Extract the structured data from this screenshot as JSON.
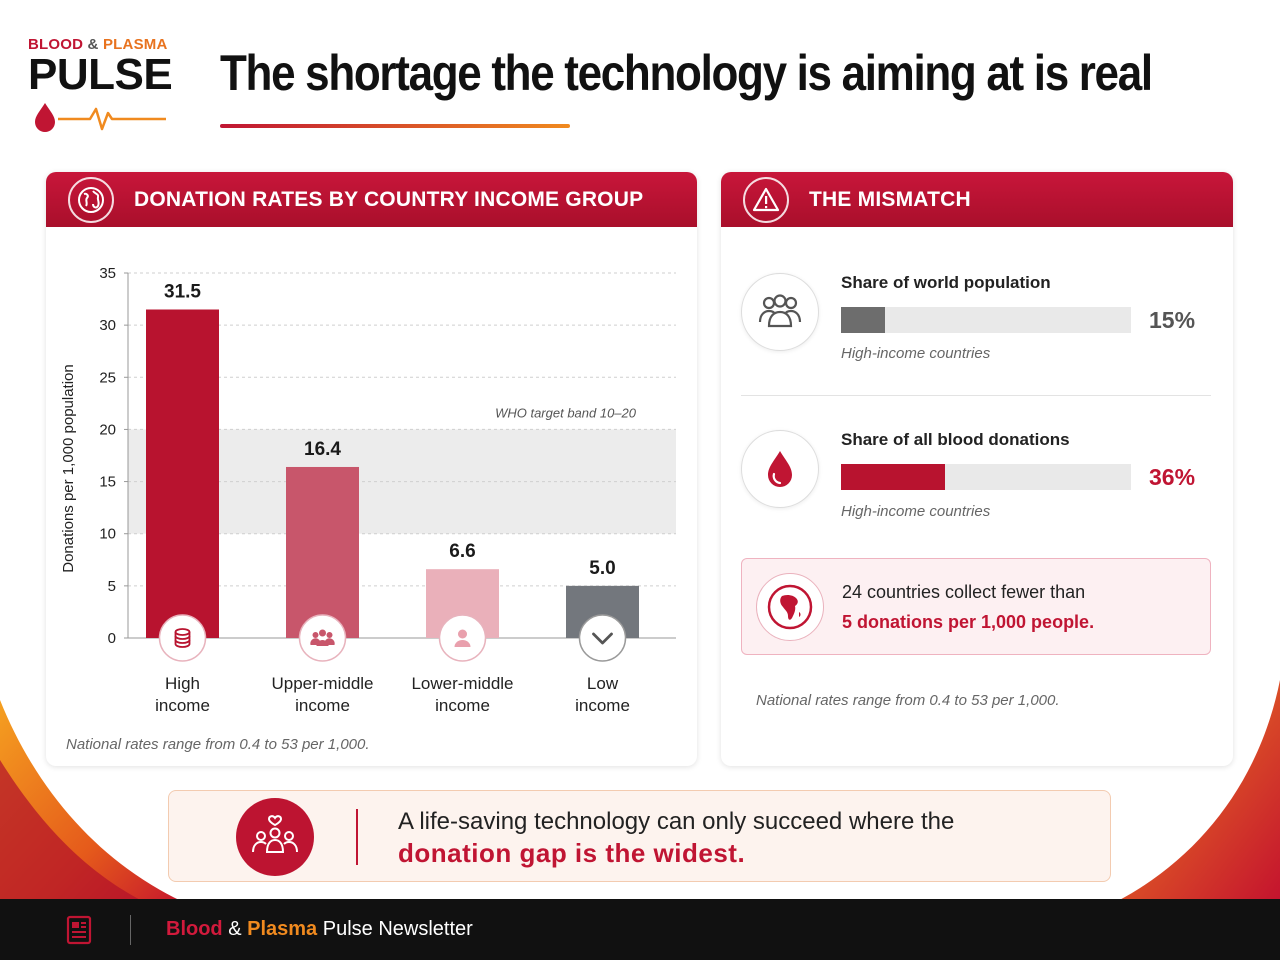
{
  "logo": {
    "line1_blood": "BLOOD",
    "line1_amp": "&",
    "line1_plasma": "PLASMA",
    "line2": "PULSE"
  },
  "title": "The shortage the technology is aiming at is real",
  "left_panel": {
    "header": "DONATION RATES BY COUNTRY INCOME GROUP",
    "note": "National rates range from 0.4 to 53 per 1,000."
  },
  "chart_data": {
    "type": "bar",
    "title": "DONATION RATES BY COUNTRY INCOME GROUP",
    "ylabel": "Donations per 1,000 population",
    "xlabel": "",
    "ylim": [
      0,
      35
    ],
    "yticks": [
      0,
      5,
      10,
      15,
      20,
      25,
      30,
      35
    ],
    "grid": true,
    "categories": [
      "High income",
      "Upper-middle income",
      "Lower-middle income",
      "Low income"
    ],
    "category_lines": [
      [
        "High",
        "income"
      ],
      [
        "Upper-middle",
        "income"
      ],
      [
        "Lower-middle",
        "income"
      ],
      [
        "Low",
        "income"
      ]
    ],
    "values": [
      31.5,
      16.4,
      6.6,
      5.0
    ],
    "value_labels": [
      "31.5",
      "16.4",
      "6.6",
      "5.0"
    ],
    "bar_colors": [
      "#b8132f",
      "#c8566b",
      "#eab0ba",
      "#73777d"
    ],
    "category_icons": [
      "coins-icon",
      "group-icon",
      "person-icon",
      "chevron-down-icon"
    ],
    "band": {
      "from": 10,
      "to": 20,
      "label": "WHO target band 10–20"
    }
  },
  "right_panel": {
    "header": "THE MISMATCH",
    "metrics": [
      {
        "title": "Share of world population",
        "value": 15,
        "value_label": "15%",
        "sub": "High-income countries",
        "color": "#6d6d6d",
        "icon": "people-icon"
      },
      {
        "title": "Share of all blood donations",
        "value": 36,
        "value_label": "36%",
        "sub": "High-income countries",
        "color": "#b8132f",
        "icon": "blood-drop-icon"
      }
    ],
    "callout": {
      "line1": "24 countries collect fewer than",
      "line2": "5 donations per 1,000 people.",
      "icon": "africa-globe-icon"
    },
    "note": "National rates range from 0.4 to 53 per 1,000."
  },
  "banner": {
    "line1": "A life-saving technology can only succeed where the",
    "line2": "donation gap is the widest.",
    "icon": "community-icon"
  },
  "footer": {
    "blood": "Blood",
    "amp": " & ",
    "plasma": "Plasma",
    "rest": " Pulse Newsletter",
    "icon": "newsletter-icon"
  },
  "colors": {
    "brand_red": "#c01533",
    "brand_orange": "#f08a1f",
    "gray": "#6d6d6d"
  }
}
